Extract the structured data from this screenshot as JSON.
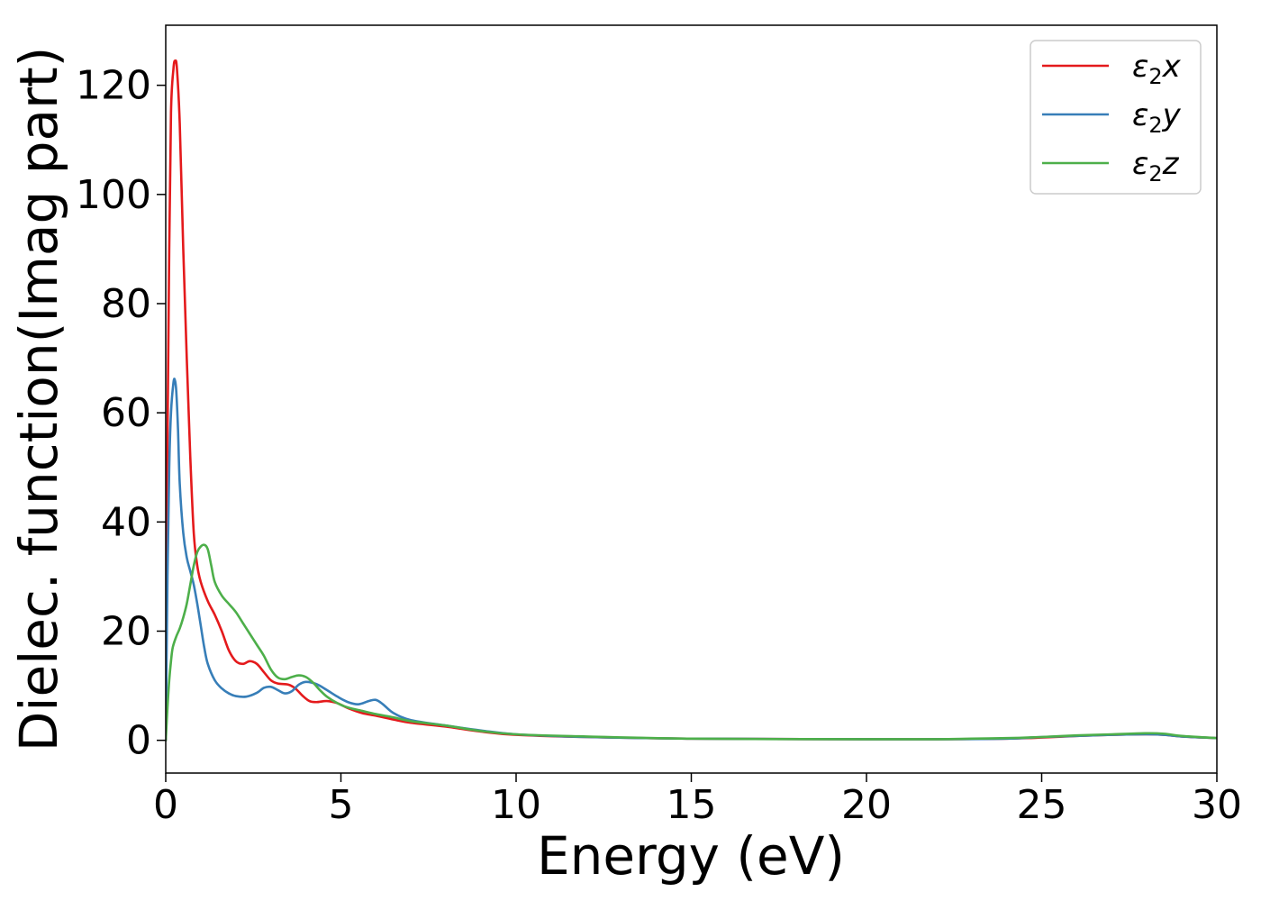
{
  "chart_data": {
    "type": "line",
    "xlabel": "Energy (eV)",
    "ylabel": "Dielec. function(Imag part)",
    "xlim": [
      0,
      30
    ],
    "ylim": [
      -6,
      131
    ],
    "xticks": [
      0,
      5,
      10,
      15,
      20,
      25,
      30
    ],
    "xtick_labels": [
      "0",
      "5",
      "10",
      "15",
      "20",
      "25",
      "30"
    ],
    "yticks": [
      0,
      20,
      40,
      60,
      80,
      100,
      120
    ],
    "ytick_labels": [
      "0",
      "20",
      "40",
      "60",
      "80",
      "100",
      "120"
    ],
    "grid": false,
    "legend_position": "top-right",
    "series": [
      {
        "name": "ε₂x",
        "legend_base": "ε",
        "legend_sub": "2",
        "legend_suffix": "x",
        "color": "#e41a1c",
        "points": [
          [
            0,
            0
          ],
          [
            0.05,
            55
          ],
          [
            0.1,
            90
          ],
          [
            0.15,
            115
          ],
          [
            0.22,
            123
          ],
          [
            0.27,
            124.5
          ],
          [
            0.32,
            123
          ],
          [
            0.4,
            113
          ],
          [
            0.5,
            90
          ],
          [
            0.6,
            70
          ],
          [
            0.7,
            52
          ],
          [
            0.8,
            38
          ],
          [
            0.9,
            32
          ],
          [
            1.0,
            29
          ],
          [
            1.2,
            25.5
          ],
          [
            1.4,
            23
          ],
          [
            1.6,
            20
          ],
          [
            1.8,
            16.5
          ],
          [
            2.0,
            14.5
          ],
          [
            2.2,
            14.0
          ],
          [
            2.4,
            14.5
          ],
          [
            2.6,
            14.0
          ],
          [
            2.8,
            12.5
          ],
          [
            3.0,
            11.0
          ],
          [
            3.2,
            10.4
          ],
          [
            3.5,
            10.2
          ],
          [
            3.7,
            9.5
          ],
          [
            3.9,
            8.2
          ],
          [
            4.1,
            7.2
          ],
          [
            4.3,
            7.0
          ],
          [
            4.6,
            7.2
          ],
          [
            4.9,
            6.8
          ],
          [
            5.2,
            5.9
          ],
          [
            5.6,
            5.0
          ],
          [
            6.0,
            4.5
          ],
          [
            6.5,
            3.8
          ],
          [
            7.0,
            3.2
          ],
          [
            8.0,
            2.5
          ],
          [
            9.0,
            1.6
          ],
          [
            10.0,
            1.0
          ],
          [
            12.0,
            0.6
          ],
          [
            15.0,
            0.3
          ],
          [
            20.0,
            0.2
          ],
          [
            22.0,
            0.2
          ],
          [
            24.0,
            0.3
          ],
          [
            25.0,
            0.5
          ],
          [
            26.0,
            0.8
          ],
          [
            27.0,
            1.0
          ],
          [
            28.0,
            1.1
          ],
          [
            28.5,
            1.0
          ],
          [
            29.0,
            0.7
          ],
          [
            30.0,
            0.4
          ]
        ]
      },
      {
        "name": "ε₂y",
        "legend_base": "ε",
        "legend_sub": "2",
        "legend_suffix": "y",
        "color": "#377eb8",
        "points": [
          [
            0,
            0
          ],
          [
            0.05,
            30
          ],
          [
            0.1,
            50
          ],
          [
            0.15,
            60
          ],
          [
            0.22,
            65.5
          ],
          [
            0.26,
            66
          ],
          [
            0.3,
            64
          ],
          [
            0.35,
            57
          ],
          [
            0.4,
            47
          ],
          [
            0.5,
            38
          ],
          [
            0.6,
            33.5
          ],
          [
            0.7,
            31
          ],
          [
            0.8,
            28.5
          ],
          [
            0.9,
            25
          ],
          [
            1.0,
            21
          ],
          [
            1.1,
            17
          ],
          [
            1.2,
            14
          ],
          [
            1.4,
            11
          ],
          [
            1.6,
            9.5
          ],
          [
            1.8,
            8.6
          ],
          [
            2.0,
            8.1
          ],
          [
            2.3,
            8.0
          ],
          [
            2.6,
            8.7
          ],
          [
            2.8,
            9.6
          ],
          [
            3.0,
            9.8
          ],
          [
            3.2,
            9.2
          ],
          [
            3.4,
            8.6
          ],
          [
            3.6,
            9.0
          ],
          [
            3.8,
            10.2
          ],
          [
            4.0,
            10.7
          ],
          [
            4.3,
            10.3
          ],
          [
            4.6,
            9.2
          ],
          [
            4.9,
            8.0
          ],
          [
            5.2,
            7.0
          ],
          [
            5.5,
            6.6
          ],
          [
            5.8,
            7.2
          ],
          [
            6.0,
            7.4
          ],
          [
            6.2,
            6.6
          ],
          [
            6.5,
            5.0
          ],
          [
            7.0,
            3.7
          ],
          [
            8.0,
            2.7
          ],
          [
            9.0,
            1.8
          ],
          [
            10.0,
            1.1
          ],
          [
            12.0,
            0.6
          ],
          [
            15.0,
            0.3
          ],
          [
            20.0,
            0.2
          ],
          [
            22.0,
            0.2
          ],
          [
            24.0,
            0.3
          ],
          [
            25.0,
            0.6
          ],
          [
            26.0,
            0.8
          ],
          [
            27.0,
            1.0
          ],
          [
            28.0,
            1.1
          ],
          [
            28.5,
            1.0
          ],
          [
            29.0,
            0.7
          ],
          [
            30.0,
            0.4
          ]
        ]
      },
      {
        "name": "ε₂z",
        "legend_base": "ε",
        "legend_sub": "2",
        "legend_suffix": "z",
        "color": "#4daf4a",
        "points": [
          [
            0,
            0
          ],
          [
            0.05,
            6
          ],
          [
            0.1,
            11
          ],
          [
            0.15,
            14.5
          ],
          [
            0.2,
            17
          ],
          [
            0.3,
            19
          ],
          [
            0.4,
            20.5
          ],
          [
            0.5,
            22.5
          ],
          [
            0.6,
            25
          ],
          [
            0.7,
            28.5
          ],
          [
            0.8,
            32
          ],
          [
            0.9,
            34.5
          ],
          [
            1.0,
            35.5
          ],
          [
            1.1,
            35.8
          ],
          [
            1.2,
            35
          ],
          [
            1.3,
            32
          ],
          [
            1.4,
            29
          ],
          [
            1.6,
            26.5
          ],
          [
            1.8,
            25
          ],
          [
            2.0,
            23.5
          ],
          [
            2.2,
            21.5
          ],
          [
            2.4,
            19.5
          ],
          [
            2.6,
            17.5
          ],
          [
            2.8,
            15.5
          ],
          [
            3.0,
            13
          ],
          [
            3.2,
            11.5
          ],
          [
            3.4,
            11.2
          ],
          [
            3.6,
            11.6
          ],
          [
            3.8,
            11.9
          ],
          [
            4.0,
            11.6
          ],
          [
            4.2,
            10.6
          ],
          [
            4.4,
            9.2
          ],
          [
            4.6,
            8.0
          ],
          [
            4.9,
            6.8
          ],
          [
            5.2,
            6.0
          ],
          [
            5.6,
            5.4
          ],
          [
            6.0,
            4.8
          ],
          [
            6.5,
            4.2
          ],
          [
            7.0,
            3.5
          ],
          [
            8.0,
            2.7
          ],
          [
            9.0,
            1.7
          ],
          [
            10.0,
            1.1
          ],
          [
            12.0,
            0.7
          ],
          [
            15.0,
            0.3
          ],
          [
            20.0,
            0.2
          ],
          [
            22.0,
            0.2
          ],
          [
            23.0,
            0.3
          ],
          [
            24.0,
            0.4
          ],
          [
            25.0,
            0.6
          ],
          [
            26.0,
            0.9
          ],
          [
            27.0,
            1.1
          ],
          [
            28.0,
            1.3
          ],
          [
            28.5,
            1.2
          ],
          [
            29.0,
            0.8
          ],
          [
            30.0,
            0.4
          ]
        ]
      }
    ]
  }
}
